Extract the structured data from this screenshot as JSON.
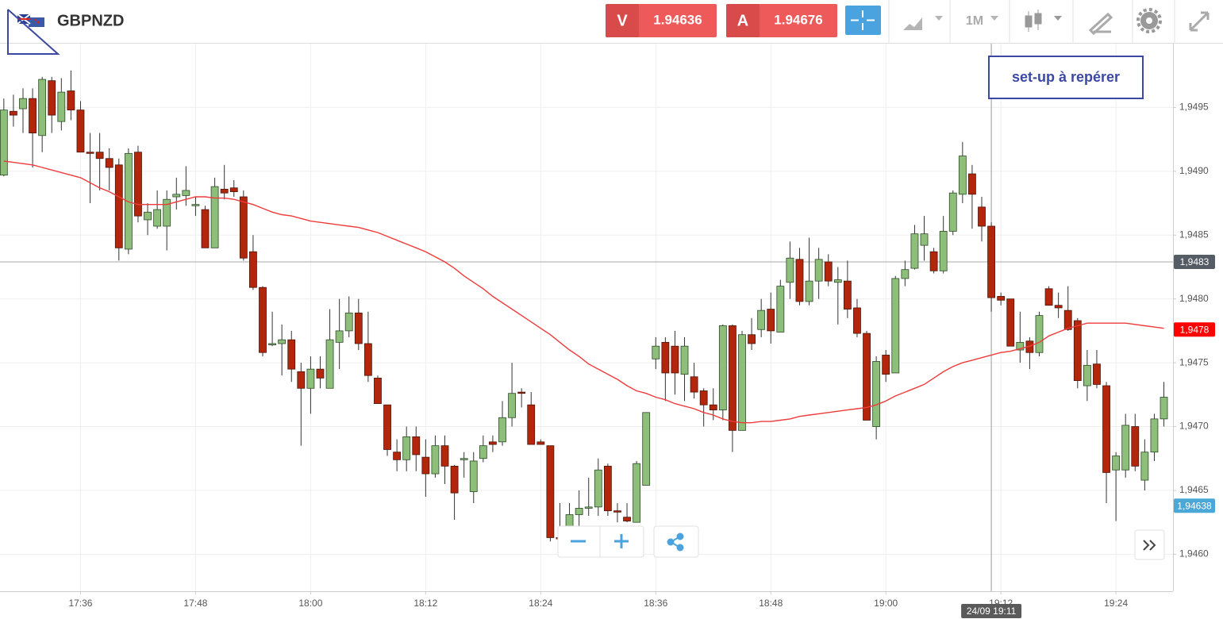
{
  "header": {
    "symbol": "GBPNZD",
    "sell": {
      "letter": "V",
      "price": "1.94636"
    },
    "buy": {
      "letter": "A",
      "price": "1.94676"
    },
    "timeframe": "1M"
  },
  "chart_data": {
    "type": "candlestick",
    "annotation": "set-up à repérer",
    "categories": [
      null,
      null,
      null,
      null,
      null,
      null,
      null,
      null,
      "17:36",
      null,
      null,
      null,
      null,
      null,
      null,
      null,
      null,
      null,
      null,
      null,
      "17:48",
      null,
      null,
      null,
      null,
      null,
      null,
      null,
      null,
      null,
      null,
      null,
      "18:00",
      null,
      null,
      null,
      null,
      null,
      null,
      null,
      null,
      null,
      null,
      null,
      "18:12",
      null,
      null,
      null,
      null,
      null,
      null,
      null,
      null,
      null,
      null,
      null,
      "18:24",
      null,
      null,
      null,
      null,
      null,
      null,
      null,
      null,
      null,
      null,
      null,
      "18:36",
      null,
      null,
      null,
      null,
      null,
      null,
      null,
      null,
      null,
      null,
      null,
      "18:48",
      null,
      null,
      null,
      null,
      null,
      null,
      null,
      null,
      null,
      null,
      null,
      "19:00",
      null,
      null,
      null,
      null,
      null,
      null,
      null,
      null,
      null,
      null,
      null,
      "19:12",
      null,
      null,
      null,
      null,
      null,
      null,
      null,
      null,
      null,
      null,
      null,
      "19:24",
      null,
      null,
      null,
      null,
      null
    ],
    "open": [
      1.94897,
      1.94947,
      1.94949,
      1.94957,
      1.94928,
      1.94971,
      1.94939,
      1.94963,
      1.94948,
      1.94915,
      1.94915,
      1.9491,
      1.94905,
      1.94839,
      1.94915,
      1.94862,
      1.94857,
      1.94857,
      1.9488,
      1.94881,
      1.94873,
      1.9487,
      1.9484,
      1.94886,
      1.94887,
      1.9488,
      1.94837,
      1.94809,
      1.94764,
      1.94765,
      1.94768,
      1.94743,
      1.9473,
      1.94745,
      1.9473,
      1.94766,
      1.94775,
      1.94789,
      1.94765,
      1.94738,
      1.94717,
      1.9468,
      1.94674,
      1.94692,
      1.94676,
      1.94663,
      1.94685,
      1.94669,
      1.94674,
      1.94649,
      1.94675,
      1.94688,
      1.94688,
      1.94707,
      1.94727,
      1.94717,
      1.94688,
      1.94685,
      1.94613,
      1.94612,
      1.94631,
      1.94636,
      1.94637,
      1.94669,
      1.94634,
      1.94629,
      1.94625,
      1.94654,
      1.94753,
      1.94766,
      1.94763,
      1.94741,
      1.94739,
      1.94728,
      1.94717,
      1.94713,
      1.94779,
      1.94697,
      1.94772,
      1.94776,
      1.94792,
      1.94774,
      1.94813,
      1.94831,
      1.94798,
      1.94814,
      1.94829,
      1.94813,
      1.94814,
      1.94793,
      1.94773,
      1.947,
      1.94756,
      1.94742,
      1.94816,
      1.94824,
      1.94842,
      1.94837,
      1.94822,
      1.94853,
      1.94882,
      1.94898,
      1.94872,
      1.94857,
      1.94802,
      1.948,
      1.9476,
      1.94767,
      1.94758,
      1.94808,
      1.94795,
      1.94791,
      1.94783,
      1.94732,
      1.94749,
      1.94732,
      1.94666,
      1.94666,
      1.947,
      1.94658,
      1.9468,
      1.94706
    ],
    "high": [
      1.94957,
      1.9496,
      1.94965,
      1.94965,
      1.94974,
      1.94974,
      1.94973,
      1.94979,
      1.94955,
      1.9493,
      1.9493,
      1.94918,
      1.9491,
      1.94918,
      1.9492,
      1.94875,
      1.94885,
      1.94885,
      1.94895,
      1.94904,
      1.9488,
      1.94873,
      1.94895,
      1.94905,
      1.94893,
      1.94885,
      1.9485,
      1.9481,
      1.9479,
      1.9478,
      1.94775,
      1.9475,
      1.94755,
      1.94755,
      1.94792,
      1.948,
      1.94802,
      1.948,
      1.9479,
      1.9474,
      1.94717,
      1.9469,
      1.947,
      1.947,
      1.9469,
      1.94693,
      1.94693,
      1.9467,
      1.9468,
      1.9468,
      1.94693,
      1.94693,
      1.9472,
      1.9475,
      1.9473,
      1.94727,
      1.9469,
      1.94685,
      1.9464,
      1.9464,
      1.9465,
      1.9466,
      1.94675,
      1.94671,
      1.9464,
      1.9464,
      1.94673,
      1.94711,
      1.9477,
      1.9477,
      1.94775,
      1.9477,
      1.9475,
      1.9473,
      1.9473,
      1.9478,
      1.9478,
      1.94775,
      1.94785,
      1.948,
      1.94805,
      1.94815,
      1.94845,
      1.9484,
      1.94848,
      1.9484,
      1.94835,
      1.94825,
      1.9483,
      1.948,
      1.94775,
      1.94755,
      1.9476,
      1.94818,
      1.9483,
      1.94858,
      1.94865,
      1.9484,
      1.94865,
      1.94885,
      1.94923,
      1.94905,
      1.9488,
      1.9486,
      1.94805,
      1.948,
      1.9479,
      1.9477,
      1.9479,
      1.9481,
      1.94805,
      1.9481,
      1.94785,
      1.9476,
      1.9476,
      1.94735,
      1.9468,
      1.9471,
      1.9471,
      1.9469,
      1.9471,
      1.94735
    ],
    "low": [
      1.94896,
      1.94935,
      1.9493,
      1.94903,
      1.94915,
      1.9493,
      1.94932,
      1.9494,
      1.94915,
      1.94875,
      1.94885,
      1.94885,
      1.9483,
      1.94835,
      1.9486,
      1.9485,
      1.94855,
      1.94838,
      1.9487,
      1.94873,
      1.94865,
      1.9484,
      1.9484,
      1.94878,
      1.9488,
      1.9483,
      1.94807,
      1.94755,
      1.94763,
      1.9474,
      1.94735,
      1.94685,
      1.9471,
      1.9473,
      1.9473,
      1.94745,
      1.9477,
      1.9476,
      1.94735,
      1.94718,
      1.94677,
      1.94665,
      1.94665,
      1.94665,
      1.94645,
      1.9466,
      1.94655,
      1.94627,
      1.9466,
      1.9464,
      1.94672,
      1.9468,
      1.94685,
      1.947,
      1.94715,
      1.94686,
      1.94686,
      1.9461,
      1.946,
      1.9461,
      1.9462,
      1.9463,
      1.9463,
      1.9463,
      1.94625,
      1.94625,
      1.94625,
      1.94654,
      1.94745,
      1.9472,
      1.94725,
      1.9472,
      1.94722,
      1.947,
      1.94705,
      1.94705,
      1.9468,
      1.94697,
      1.9476,
      1.9477,
      1.94765,
      1.94774,
      1.948,
      1.94795,
      1.94795,
      1.948,
      1.9481,
      1.9478,
      1.94785,
      1.9477,
      1.94705,
      1.9469,
      1.94735,
      1.94742,
      1.9481,
      1.94823,
      1.9483,
      1.9482,
      1.9482,
      1.9485,
      1.94875,
      1.94855,
      1.94845,
      1.9479,
      1.94795,
      1.94763,
      1.9475,
      1.94745,
      1.94755,
      1.94795,
      1.94785,
      1.94775,
      1.9473,
      1.9472,
      1.9473,
      1.9464,
      1.94626,
      1.9466,
      1.94665,
      1.9465,
      1.94673,
      1.947
    ],
    "close": [
      1.94948,
      1.94944,
      1.94957,
      1.9493,
      1.94972,
      1.94944,
      1.94962,
      1.94948,
      1.94915,
      1.94914,
      1.9491,
      1.94903,
      1.9484,
      1.94914,
      1.94865,
      1.94868,
      1.9487,
      1.94878,
      1.94882,
      1.94885,
      1.94874,
      1.9484,
      1.94888,
      1.94883,
      1.94884,
      1.94832,
      1.94809,
      1.94758,
      1.94765,
      1.94768,
      1.94745,
      1.9473,
      1.94745,
      1.94738,
      1.94768,
      1.94775,
      1.94789,
      1.94765,
      1.9474,
      1.94718,
      1.94682,
      1.94674,
      1.94692,
      1.94678,
      1.94663,
      1.94685,
      1.94669,
      1.94648,
      1.94675,
      1.94673,
      1.94685,
      1.94686,
      1.94707,
      1.94726,
      1.94726,
      1.94686,
      1.94686,
      1.94613,
      1.94612,
      1.94631,
      1.94636,
      1.94637,
      1.94666,
      1.94634,
      1.94633,
      1.94626,
      1.94671,
      1.94711,
      1.94763,
      1.94742,
      1.94742,
      1.94763,
      1.94727,
      1.94717,
      1.94713,
      1.94779,
      1.94697,
      1.94772,
      1.94765,
      1.94791,
      1.94775,
      1.9481,
      1.94832,
      1.94798,
      1.94814,
      1.94831,
      1.94814,
      1.94815,
      1.94792,
      1.94773,
      1.94705,
      1.94751,
      1.94741,
      1.94816,
      1.94823,
      1.94851,
      1.94851,
      1.94822,
      1.94853,
      1.94883,
      1.94912,
      1.94882,
      1.94857,
      1.94801,
      1.94799,
      1.94763,
      1.94766,
      1.94758,
      1.94787,
      1.94795,
      1.94793,
      1.94776,
      1.94736,
      1.94748,
      1.94733,
      1.94664,
      1.94677,
      1.94701,
      1.94669,
      1.9468,
      1.94706,
      1.94723
    ],
    "up_color": "#8dbf7a",
    "down_color": "#b3260c",
    "moving_average": {
      "color": "#ee3b3b",
      "values": [
        1.94908,
        1.94907,
        1.94906,
        1.94905,
        1.94903,
        1.94901,
        1.94899,
        1.94897,
        1.94895,
        1.94891,
        1.94887,
        1.94884,
        1.9488,
        1.94876,
        1.94874,
        1.94874,
        1.94874,
        1.94874,
        1.94876,
        1.94878,
        1.9488,
        1.9488,
        1.94879,
        1.94879,
        1.94878,
        1.94876,
        1.94874,
        1.94871,
        1.94868,
        1.94866,
        1.94865,
        1.94863,
        1.94861,
        1.9486,
        1.94859,
        1.94858,
        1.94857,
        1.94856,
        1.94854,
        1.94852,
        1.94849,
        1.94846,
        1.94843,
        1.9484,
        1.94837,
        1.94833,
        1.94829,
        1.94824,
        1.94818,
        1.94813,
        1.94808,
        1.94802,
        1.94797,
        1.94792,
        1.94787,
        1.94782,
        1.94777,
        1.94772,
        1.94766,
        1.9476,
        1.94755,
        1.94749,
        1.94745,
        1.94741,
        1.94737,
        1.94732,
        1.94728,
        1.94726,
        1.94723,
        1.94721,
        1.94718,
        1.94716,
        1.94714,
        1.94711,
        1.94709,
        1.94706,
        1.94704,
        1.94703,
        1.94703,
        1.94704,
        1.94704,
        1.94705,
        1.94706,
        1.94708,
        1.94709,
        1.9471,
        1.94711,
        1.94712,
        1.94713,
        1.94714,
        1.94715,
        1.94717,
        1.9472,
        1.94724,
        1.94727,
        1.9473,
        1.94733,
        1.94738,
        1.94743,
        1.94747,
        1.9475,
        1.94752,
        1.94754,
        1.94756,
        1.94758,
        1.94759,
        1.94761,
        1.94763,
        1.94766,
        1.94771,
        1.94774,
        1.94777,
        1.94779,
        1.94781,
        1.94781,
        1.94781,
        1.94781,
        1.94781,
        1.9478,
        1.94779,
        1.94778,
        1.94777
      ]
    },
    "price_lines": [
      {
        "value": 1.94829,
        "label": "1,9483",
        "color": "#555c66",
        "show_line": true
      },
      {
        "value": 1.94776,
        "label": "1,9478",
        "color": "#ff0000"
      },
      {
        "value": 1.94638,
        "label": "1,94638",
        "color": "#4aa8d8"
      }
    ],
    "crosshair": {
      "category_index": 103,
      "label": "24/09 19:11"
    },
    "ylim": [
      1.94571,
      1.95
    ],
    "yticks": [
      {
        "value": 1.946,
        "label": "1,9460"
      },
      {
        "value": 1.9465,
        "label": "1,9465"
      },
      {
        "value": 1.947,
        "label": "1,9470"
      },
      {
        "value": 1.9475,
        "label": "1,9475"
      },
      {
        "value": 1.948,
        "label": "1,9480"
      },
      {
        "value": 1.9485,
        "label": "1,9485"
      },
      {
        "value": 1.949,
        "label": "1,9490"
      },
      {
        "value": 1.9495,
        "label": "1,9495"
      }
    ],
    "grid": true
  }
}
